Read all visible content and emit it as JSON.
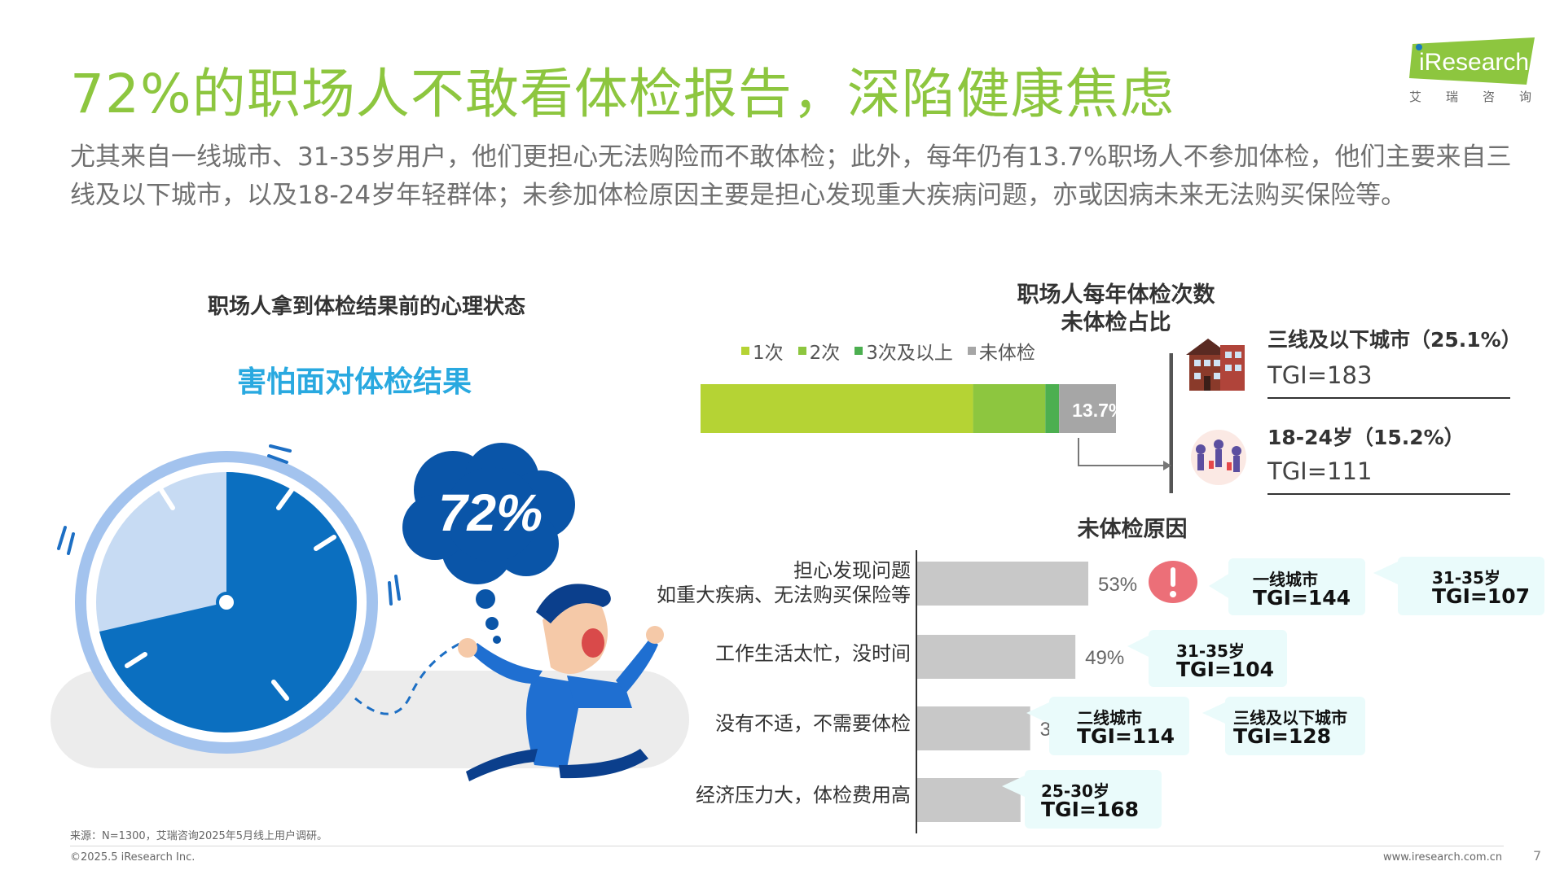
{
  "header": {
    "title": "72%的职场人不敢看体检报告，深陷健康焦虑",
    "subtitle": "尤其来自一线城市、31-35岁用户，他们更担心无法购险而不敢体检；此外，每年仍有13.7%职场人不参加体检，他们主要来自三线及以下城市，以及18-24岁年轻群体；未参加体检原因主要是担心发现重大疾病问题，亦或因病未来无法购买保险等。"
  },
  "logo": {
    "text": "iResearch",
    "sub": [
      "艾",
      "瑞",
      "咨",
      "询"
    ]
  },
  "left_panel": {
    "title": "职场人拿到体检结果前的心理状态",
    "highlight": "害怕面对体检结果",
    "bubble_value": "72%"
  },
  "chart_data": [
    {
      "type": "bar",
      "orientation": "horizontal-stacked",
      "title": "职场人每年体检次数",
      "subtitle": "未体检占比",
      "series": [
        {
          "name": "1次",
          "value": 65.6,
          "color": "#b5d334"
        },
        {
          "name": "2次",
          "value": 17.4,
          "color": "#8dc63f"
        },
        {
          "name": "3次及以上",
          "value": 3.3,
          "color": "#4caf50"
        },
        {
          "name": "未体检",
          "value": 13.7,
          "color": "#a6a6a6"
        }
      ],
      "data_labels": [
        "13.7%"
      ]
    },
    {
      "type": "bar",
      "orientation": "horizontal",
      "title": "未体检原因",
      "categories": [
        "担心发现问题\n如重大疾病、无法购买保险等",
        "工作生活太忙，没时间",
        "没有不适，不需要体检",
        "经济压力大，体检费用高"
      ],
      "values": [
        53,
        49,
        35,
        32
      ],
      "data_labels": [
        "53%",
        "49%",
        "35%",
        "32%"
      ],
      "color": "#c8c8c8"
    }
  ],
  "no_checkup_profiles": [
    {
      "label": "三线及以下城市（25.1%）",
      "tgi": "TGI=183"
    },
    {
      "label": "18-24岁（15.2%）",
      "tgi": "TGI=111"
    }
  ],
  "reason_callouts": [
    {
      "row": 0,
      "l1": "一线城市",
      "l2": "TGI=144"
    },
    {
      "row": 0,
      "l1": "31-35岁",
      "l2": "TGI=107"
    },
    {
      "row": 1,
      "l1": "31-35岁",
      "l2": "TGI=104"
    },
    {
      "row": 2,
      "l1": "二线城市",
      "l2": "TGI=114"
    },
    {
      "row": 2,
      "l1": "三线及以下城市",
      "l2": "TGI=128"
    },
    {
      "row": 3,
      "l1": "25-30岁",
      "l2": "TGI=168"
    }
  ],
  "footer": {
    "source": "来源：N=1300，艾瑞咨询2025年5月线上用户调研。",
    "copyright": "©2025.5 iResearch Inc.",
    "url": "www.iresearch.com.cn",
    "page": "7"
  },
  "colors": {
    "accent_green": "#8dc63f",
    "accent_blue": "#29a9e0",
    "clock_blue": "#0b6fc0"
  }
}
